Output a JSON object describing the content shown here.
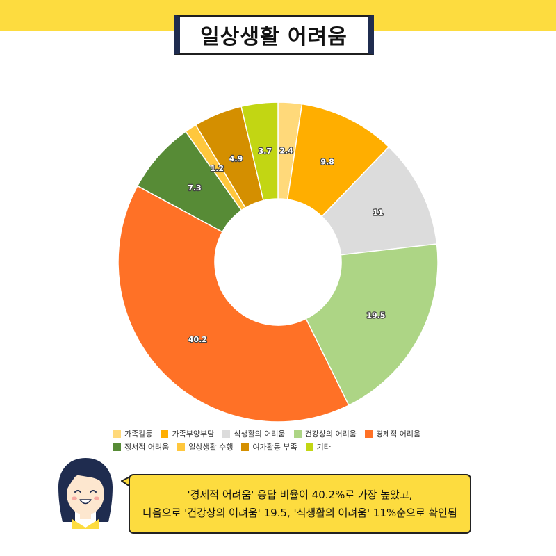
{
  "header": {
    "title": "일상생활 어려움",
    "bar_color": "#fddc3f"
  },
  "chart_data": {
    "type": "pie",
    "variant": "donut",
    "title": "",
    "legend_position": "bottom",
    "slices": [
      {
        "label": "가족갈등",
        "value": 2.4,
        "value_label": "2.4",
        "color": "#ffd97a"
      },
      {
        "label": "가족부양부담",
        "value": 9.8,
        "value_label": "9.8",
        "color": "#ffae00"
      },
      {
        "label": "식생활의 어려움",
        "value": 11,
        "value_label": "11",
        "color": "#dcdcdc"
      },
      {
        "label": "건강상의 어려움",
        "value": 19.5,
        "value_label": "19.5",
        "color": "#add585"
      },
      {
        "label": "경제적 어려움",
        "value": 40.2,
        "value_label": "40.2",
        "color": "#ff7126"
      },
      {
        "label": "정서적 어려움",
        "value": 7.3,
        "value_label": "7.3",
        "color": "#578b36"
      },
      {
        "label": "일상생활 수행",
        "value": 1.2,
        "value_label": "1.2",
        "color": "#ffc73d"
      },
      {
        "label": "여가활동 부족",
        "value": 4.9,
        "value_label": "4.9",
        "color": "#d48f00"
      },
      {
        "label": "기타",
        "value": 3.7,
        "value_label": "3.7",
        "color": "#c2d613"
      }
    ]
  },
  "callout": {
    "line1": "'경제적 어려움' 응답 비율이 40.2%로 가장 높았고,",
    "line2": "다음으로 '건강상의 어려움' 19.5, '식생활의 어려움' 11%순으로 확인됨",
    "bubble_color": "#fddc3f"
  },
  "avatar": {
    "icon": "smiling-girl-avatar-icon"
  }
}
